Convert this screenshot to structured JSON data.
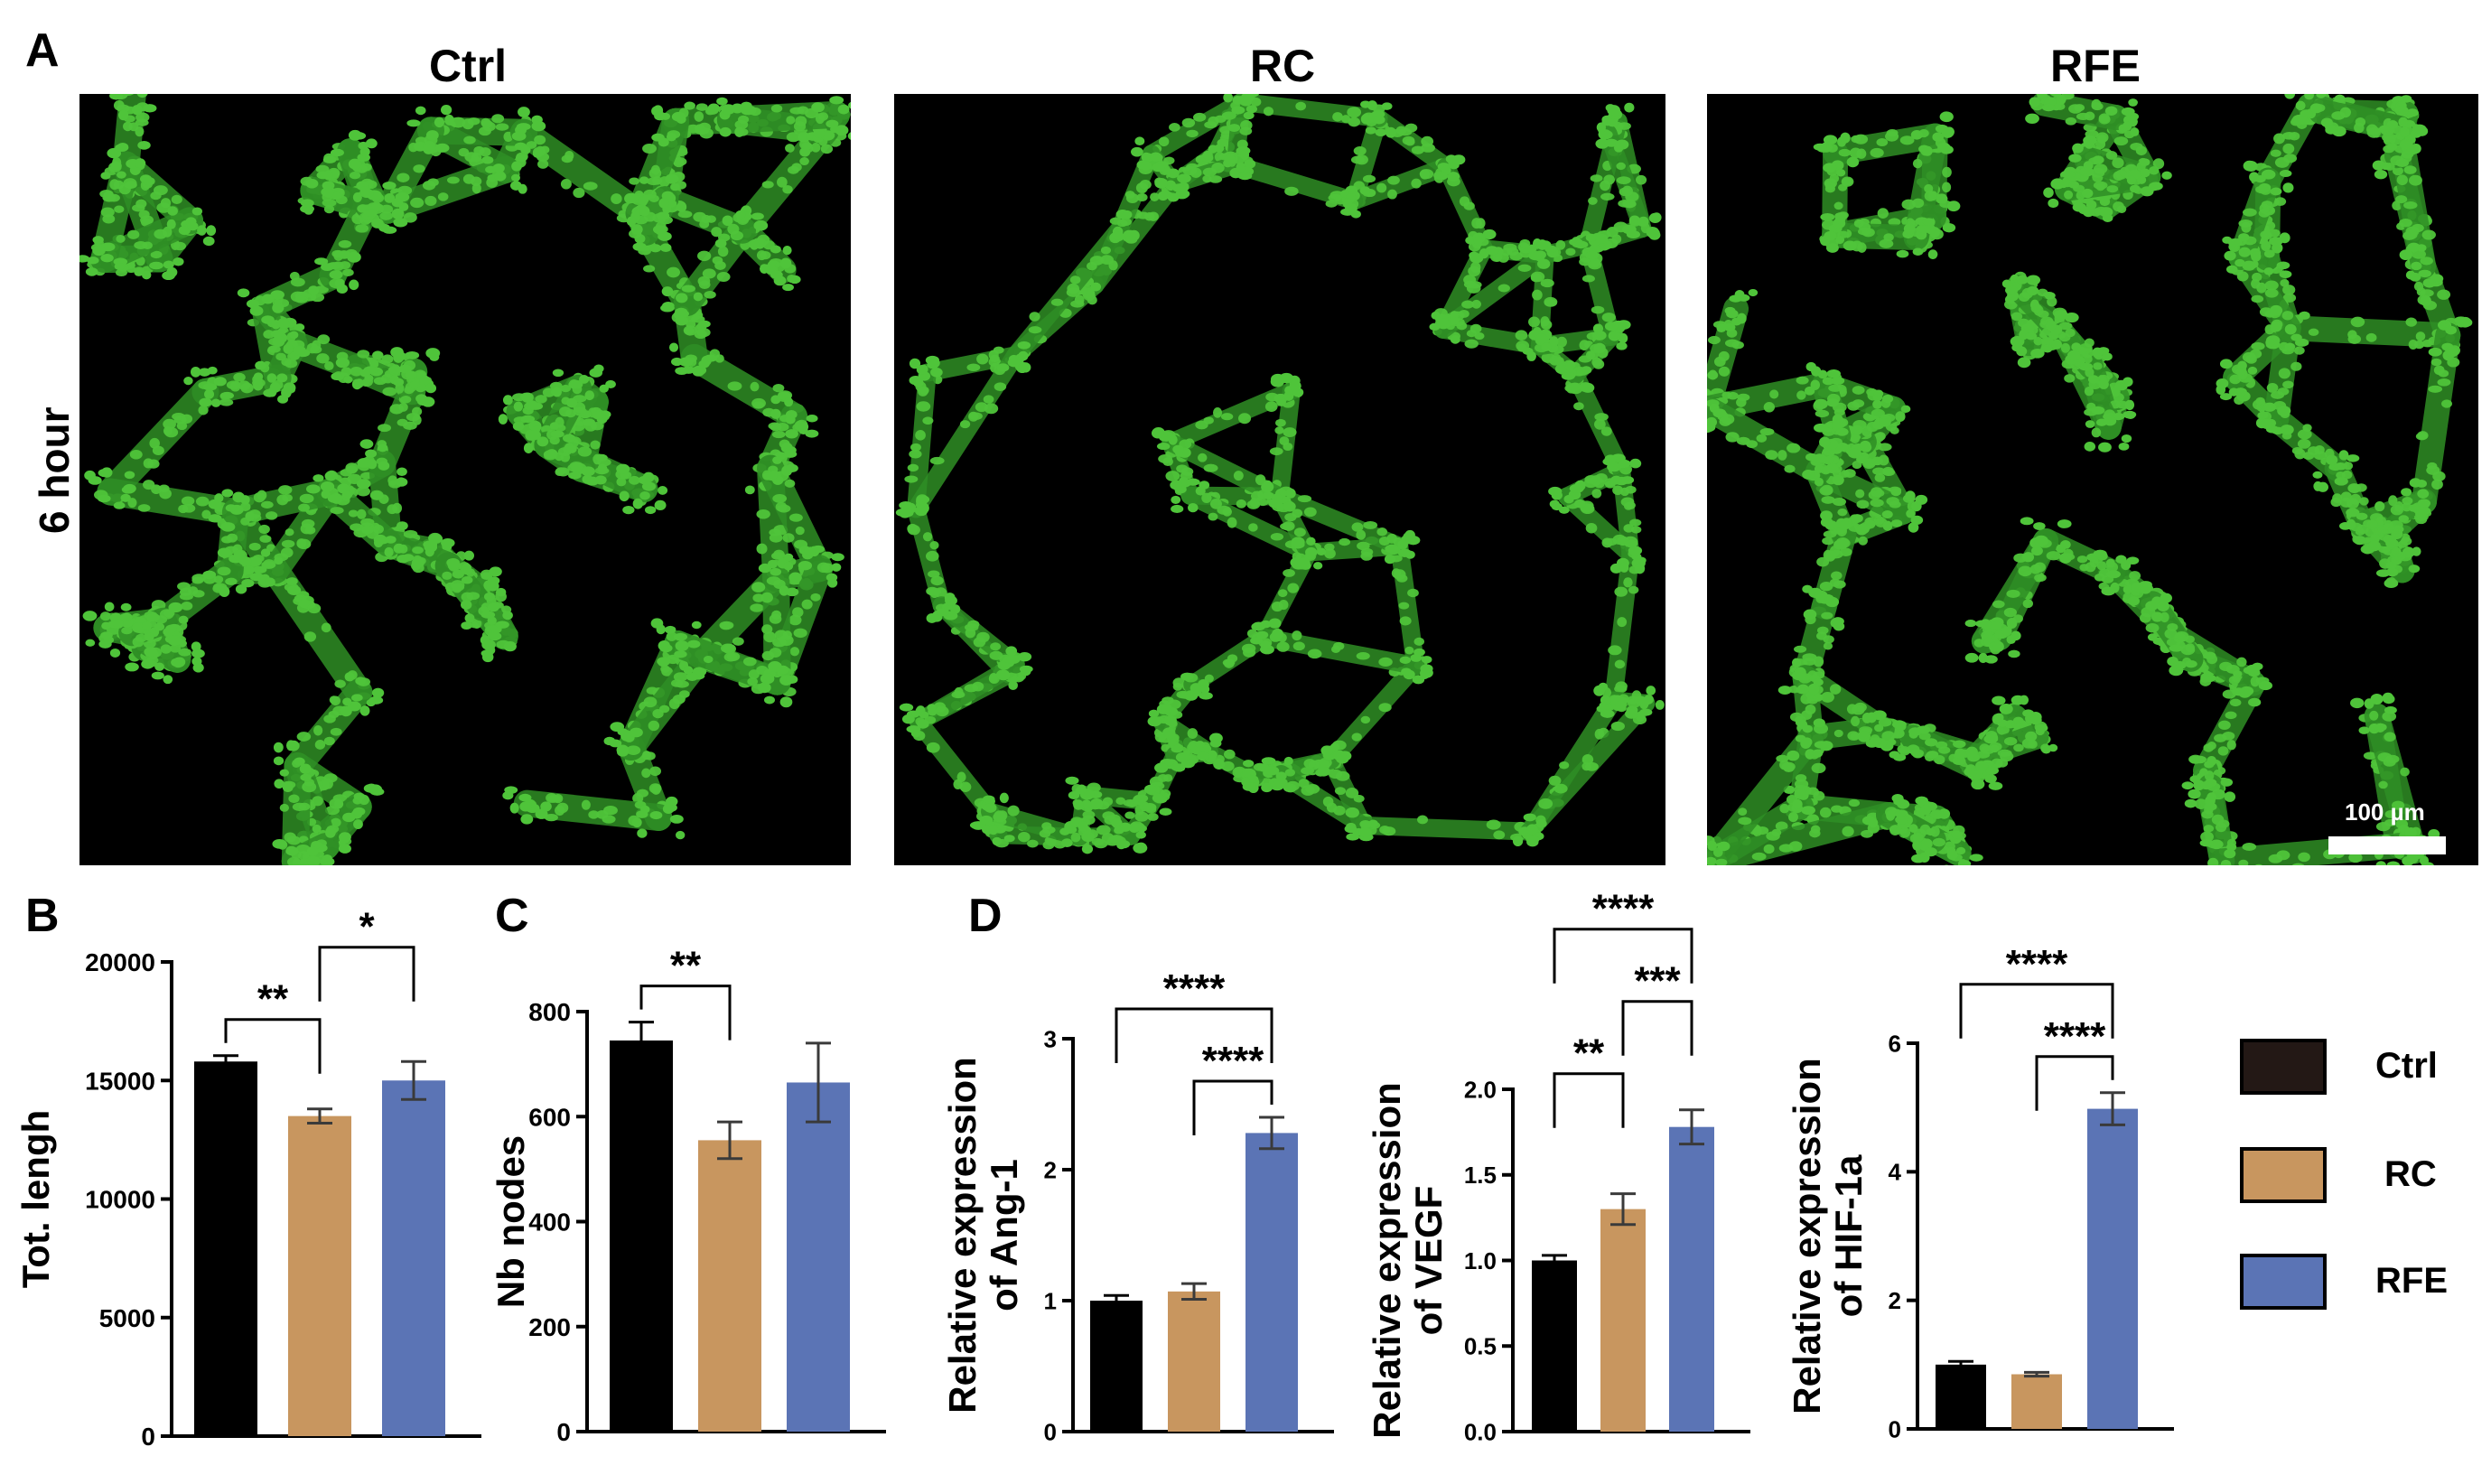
{
  "panels": {
    "A": "A",
    "B": "B",
    "C": "C",
    "D": "D"
  },
  "panel_a": {
    "columns": [
      "Ctrl",
      "RC",
      "RFE"
    ],
    "row_label": "6 hour",
    "scale_bar_label": "100 µm",
    "colors": {
      "cells": "#4fc43a",
      "background": "#000000"
    }
  },
  "legend": [
    {
      "label": "Ctrl",
      "color": "#000000"
    },
    {
      "label": "RC",
      "color": "#c8965f"
    },
    {
      "label": "RFE",
      "color": "#5b74b5"
    }
  ],
  "chart_data": [
    {
      "type": "bar",
      "panel": "B",
      "categories": [
        "Ctrl",
        "RC",
        "RFE"
      ],
      "values": [
        15800,
        13500,
        15000
      ],
      "errors": [
        250,
        300,
        800
      ],
      "ylabel": "Tot. lengh",
      "ylim": [
        0,
        20000
      ],
      "yticks": [
        "0",
        "5000",
        "10000",
        "15000",
        "20000"
      ],
      "colors": [
        "#000000",
        "#c8965f",
        "#5b74b5"
      ],
      "significance": [
        {
          "from": 0,
          "to": 1,
          "label": "**"
        },
        {
          "from": 1,
          "to": 2,
          "label": "*"
        }
      ]
    },
    {
      "type": "bar",
      "panel": "C",
      "categories": [
        "Ctrl",
        "RC",
        "RFE"
      ],
      "values": [
        745,
        555,
        665
      ],
      "errors": [
        35,
        35,
        75
      ],
      "ylabel": "Nb nodes",
      "ylim": [
        0,
        800
      ],
      "yticks": [
        "0",
        "200",
        "400",
        "600",
        "800"
      ],
      "colors": [
        "#000000",
        "#c8965f",
        "#5b74b5"
      ],
      "significance": [
        {
          "from": 0,
          "to": 1,
          "label": "**"
        }
      ]
    },
    {
      "type": "bar",
      "panel": "D",
      "categories": [
        "Ctrl",
        "RC",
        "RFE"
      ],
      "values": [
        1.0,
        1.07,
        2.28
      ],
      "errors": [
        0.04,
        0.06,
        0.12
      ],
      "ylabel": "Relative expression\nof Ang-1",
      "ylim": [
        0,
        3
      ],
      "yticks": [
        "0",
        "1",
        "2",
        "3"
      ],
      "colors": [
        "#000000",
        "#c8965f",
        "#5b74b5"
      ],
      "significance": [
        {
          "from": 1,
          "to": 2,
          "label": "****"
        },
        {
          "from": 0,
          "to": 2,
          "label": "****"
        }
      ]
    },
    {
      "type": "bar",
      "panel": "D",
      "categories": [
        "Ctrl",
        "RC",
        "RFE"
      ],
      "values": [
        1.0,
        1.3,
        1.78
      ],
      "errors": [
        0.03,
        0.09,
        0.1
      ],
      "ylabel": "Relative expression\nof VEGF",
      "ylim": [
        0,
        2.0
      ],
      "yticks": [
        "0.0",
        "0.5",
        "1.0",
        "1.5",
        "2.0"
      ],
      "colors": [
        "#000000",
        "#c8965f",
        "#5b74b5"
      ],
      "significance": [
        {
          "from": 0,
          "to": 1,
          "label": "**"
        },
        {
          "from": 1,
          "to": 2,
          "label": "***"
        },
        {
          "from": 0,
          "to": 2,
          "label": "****"
        }
      ]
    },
    {
      "type": "bar",
      "panel": "D",
      "categories": [
        "Ctrl",
        "RC",
        "RFE"
      ],
      "values": [
        1.0,
        0.85,
        4.98
      ],
      "errors": [
        0.05,
        0.03,
        0.25
      ],
      "ylabel": "Relative expression\nof HIF-1a",
      "ylim": [
        0,
        6
      ],
      "yticks": [
        "0",
        "2",
        "4",
        "6"
      ],
      "colors": [
        "#000000",
        "#c8965f",
        "#5b74b5"
      ],
      "significance": [
        {
          "from": 1,
          "to": 2,
          "label": "****"
        },
        {
          "from": 0,
          "to": 2,
          "label": "****"
        }
      ]
    }
  ]
}
